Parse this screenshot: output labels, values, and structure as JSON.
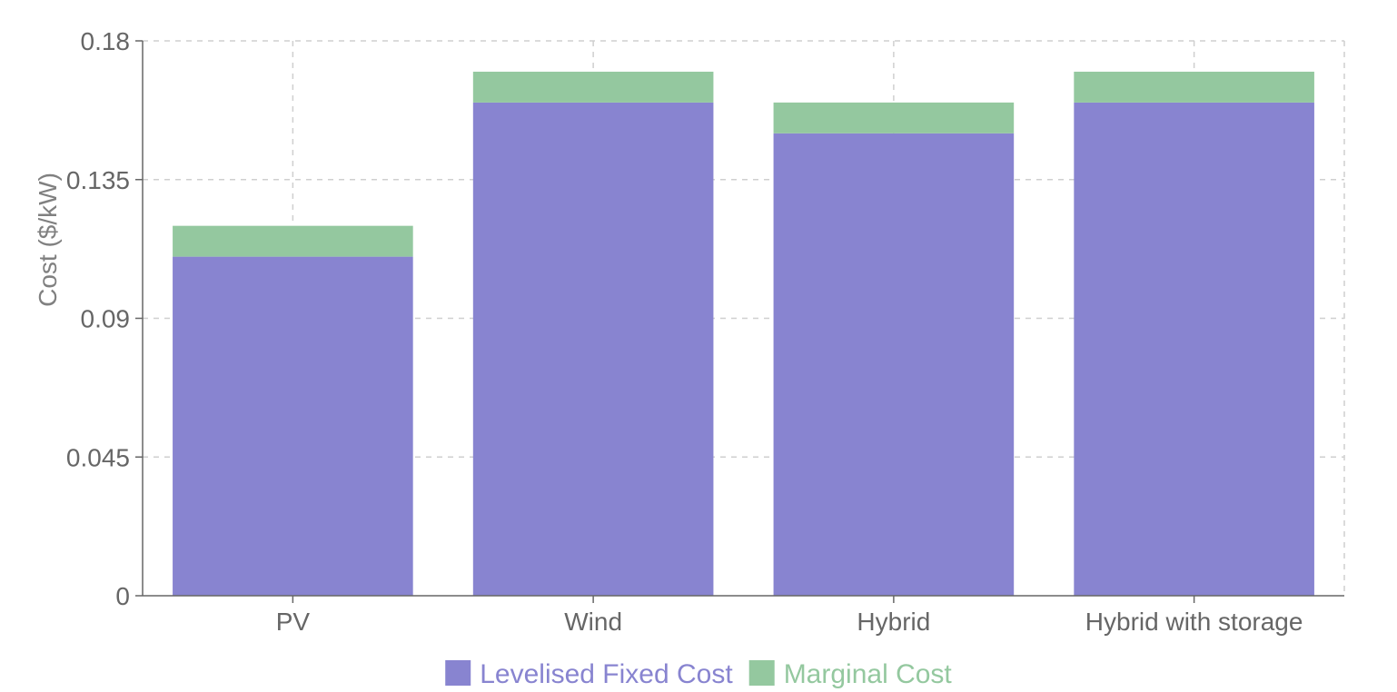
{
  "chart_data": {
    "type": "bar",
    "stacked": true,
    "categories": [
      "PV",
      "Wind",
      "Hybrid",
      "Hybrid with storage"
    ],
    "series": [
      {
        "name": "Levelised Fixed Cost",
        "color": "#8884d0",
        "values": [
          0.11,
          0.16,
          0.15,
          0.16
        ]
      },
      {
        "name": "Marginal Cost",
        "color": "#94c89f",
        "values": [
          0.01,
          0.01,
          0.01,
          0.01
        ]
      }
    ],
    "title": "",
    "xlabel": "",
    "ylabel": "Cost ($/kW)",
    "ylim": [
      0,
      0.18
    ],
    "yticks": [
      "0",
      "0.045",
      "0.09",
      "0.135",
      "0.18"
    ],
    "grid": true,
    "legend_position": "bottom-center"
  }
}
